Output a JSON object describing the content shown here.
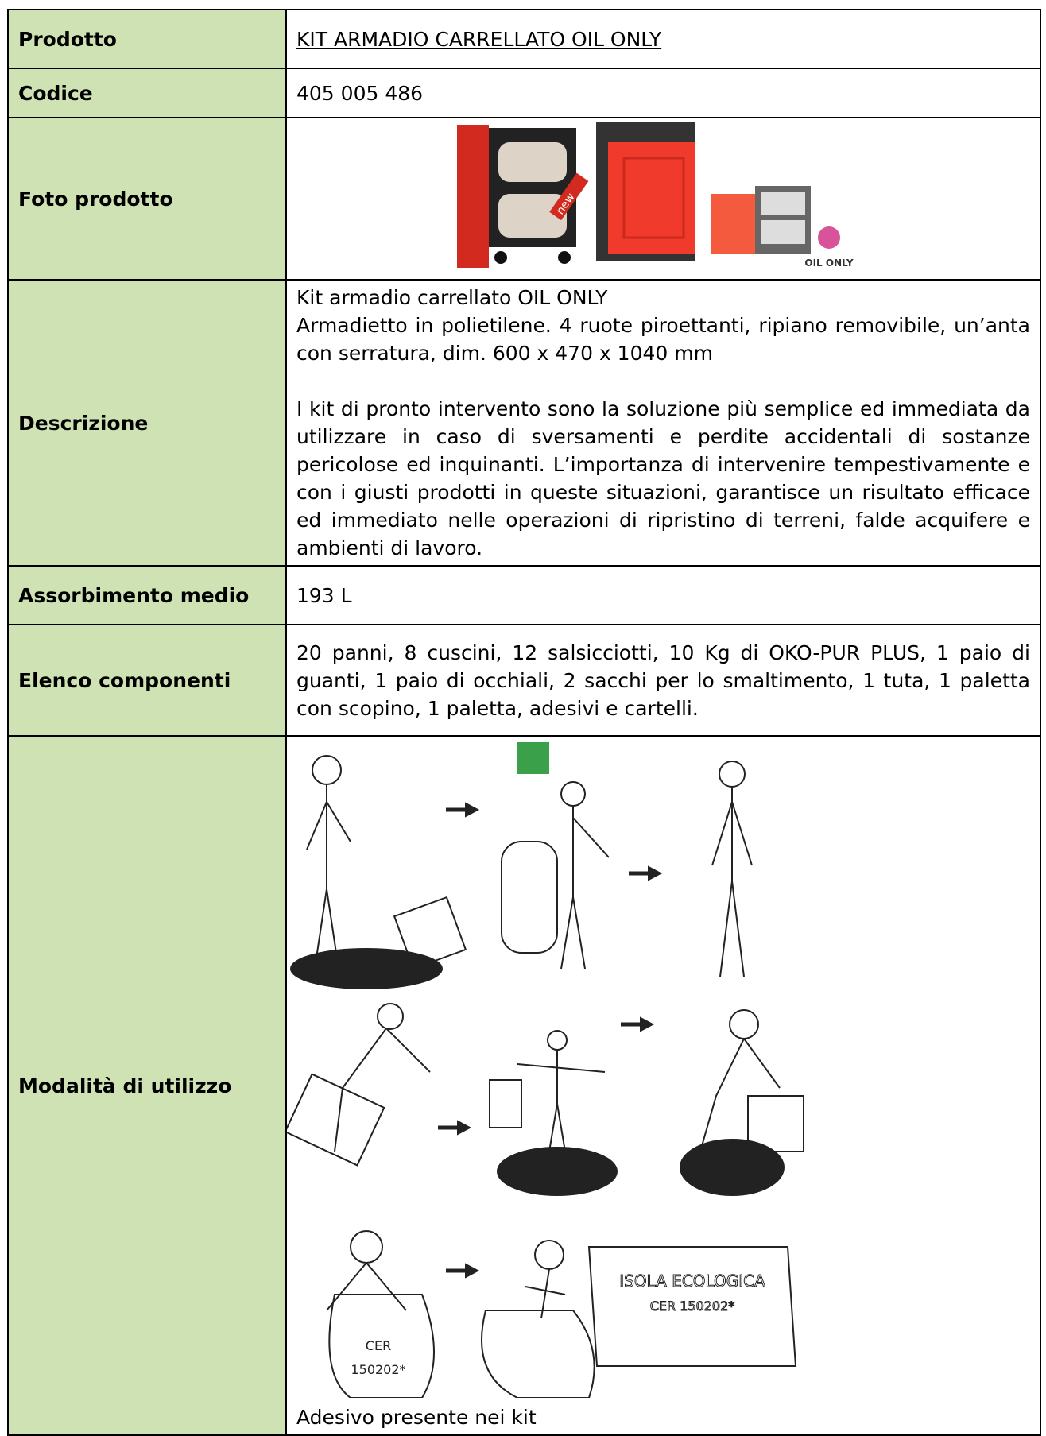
{
  "table": {
    "rows": [
      {
        "label": "Prodotto",
        "value": "KIT ARMADIO CARRELLATO OIL ONLY"
      },
      {
        "label": "Codice",
        "value": "405 005 486"
      },
      {
        "label": "Foto prodotto",
        "images": {
          "badge": "new",
          "logo": "OIL ONLY"
        }
      },
      {
        "label": "Descrizione",
        "paragraphs": [
          "Kit armadio carrellato OIL ONLY",
          "Armadietto in polietilene. 4 ruote piroettanti, ripiano removibile, un’anta con serratura, dim. 600 x 470 x 1040 mm",
          "I kit di pronto intervento sono la soluzione più semplice ed immediata da utilizzare in caso di sversamenti e perdite accidentali di sostanze pericolose ed inquinanti. L’importanza di intervenire tempestivamente e con i giusti prodotti in queste situazioni, garantisce un risultato efficace ed immediato nelle operazioni di ripristino di terreni, falde acquifere e ambienti di lavoro."
        ]
      },
      {
        "label": "Assorbimento medio",
        "value": "193 L"
      },
      {
        "label": "Elenco componenti",
        "value": "20 panni, 8 cuscini, 12 salsicciotti, 10 Kg di OKO-PUR PLUS, 1 paio di guanti, 1 paio di occhiali, 2 sacchi per lo smaltimento, 1 tuta, 1 paletta con scopino, 1 paletta, adesivi e cartelli."
      },
      {
        "label": "Modalità di utilizzo",
        "images": {
          "bag_label": "CER",
          "bag_code": "150202*",
          "bin_title": "ISOLA ECOLOGICA",
          "bin_code": "CER 150202*"
        },
        "caption": "Adesivo presente nei kit"
      }
    ]
  }
}
